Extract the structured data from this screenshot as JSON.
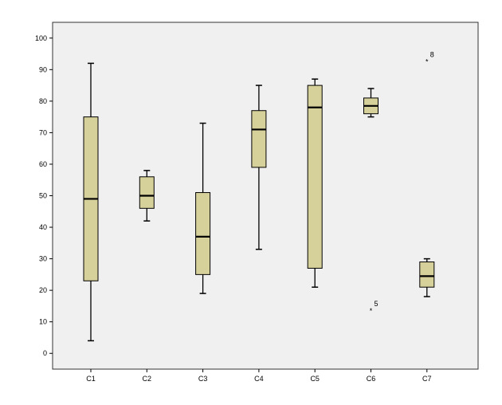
{
  "chart_data": {
    "type": "boxplot",
    "title": "",
    "xlabel": "",
    "ylabel": "",
    "ylim": [
      -5,
      105
    ],
    "y_ticks": [
      0,
      10,
      20,
      30,
      40,
      50,
      60,
      70,
      80,
      90,
      100
    ],
    "grid": false,
    "categories": [
      "C1",
      "C2",
      "C3",
      "C4",
      "C5",
      "C6",
      "C7"
    ],
    "boxes": [
      {
        "category": "C1",
        "whisker_low": 4,
        "q1": 23,
        "median": 49,
        "q3": 75,
        "whisker_high": 92,
        "outliers": []
      },
      {
        "category": "C2",
        "whisker_low": 42,
        "q1": 46,
        "median": 50,
        "q3": 56,
        "whisker_high": 58,
        "outliers": []
      },
      {
        "category": "C3",
        "whisker_low": 19,
        "q1": 25,
        "median": 37,
        "q3": 51,
        "whisker_high": 73,
        "outliers": []
      },
      {
        "category": "C4",
        "whisker_low": 33,
        "q1": 59,
        "median": 71,
        "q3": 77,
        "whisker_high": 85,
        "outliers": []
      },
      {
        "category": "C5",
        "whisker_low": 21,
        "q1": 27,
        "median": 78,
        "q3": 85,
        "whisker_high": 87,
        "outliers": []
      },
      {
        "category": "C6",
        "whisker_low": 75,
        "q1": 76,
        "median": 78.5,
        "q3": 81,
        "whisker_high": 84,
        "outliers": [
          {
            "value": 14,
            "label": "5"
          }
        ]
      },
      {
        "category": "C7",
        "whisker_low": 18,
        "q1": 21,
        "median": 24.5,
        "q3": 29,
        "whisker_high": 30,
        "outliers": [
          {
            "value": 93,
            "label": "8"
          }
        ]
      }
    ],
    "colors": {
      "page_background": "#ffffff",
      "plot_background": "#f0f0f0",
      "box_fill": "#d6d09a",
      "stroke": "#000000"
    }
  }
}
